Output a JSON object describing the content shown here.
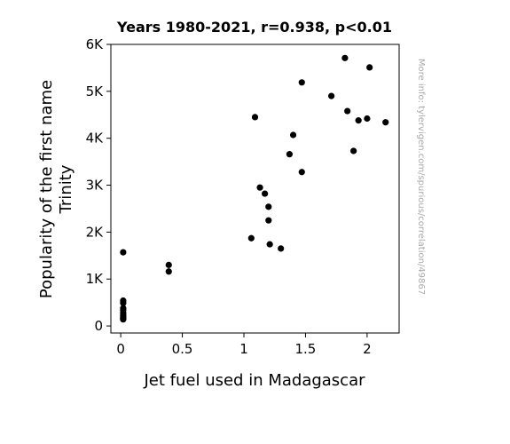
{
  "chart_data": {
    "type": "scatter",
    "title": "Years 1980-2021, r=0.938, p<0.01",
    "xlabel": "Jet fuel used in Madagascar",
    "ylabel_lines": [
      "Popularity of the first name",
      "Trinity"
    ],
    "xlim": [
      -0.08,
      2.26
    ],
    "ylim": [
      -150,
      6000
    ],
    "xticks": [
      {
        "value": 0,
        "label": "0"
      },
      {
        "value": 0.5,
        "label": "0.5"
      },
      {
        "value": 1,
        "label": "1"
      },
      {
        "value": 1.5,
        "label": "1.5"
      },
      {
        "value": 2,
        "label": "2"
      }
    ],
    "yticks": [
      {
        "value": 0,
        "label": "0"
      },
      {
        "value": 1000,
        "label": "1K"
      },
      {
        "value": 2000,
        "label": "2K"
      },
      {
        "value": 3000,
        "label": "3K"
      },
      {
        "value": 4000,
        "label": "4K"
      },
      {
        "value": 5000,
        "label": "5K"
      },
      {
        "value": 6000,
        "label": "6K"
      }
    ],
    "grid": false,
    "marker_color": "#000000",
    "points": [
      {
        "x": 0.02,
        "y": 1570
      },
      {
        "x": 0.02,
        "y": 540
      },
      {
        "x": 0.02,
        "y": 490
      },
      {
        "x": 0.02,
        "y": 380
      },
      {
        "x": 0.02,
        "y": 340
      },
      {
        "x": 0.02,
        "y": 280
      },
      {
        "x": 0.02,
        "y": 240
      },
      {
        "x": 0.02,
        "y": 210
      },
      {
        "x": 0.02,
        "y": 180
      },
      {
        "x": 0.02,
        "y": 160
      },
      {
        "x": 0.02,
        "y": 140
      },
      {
        "x": 0.39,
        "y": 1300
      },
      {
        "x": 0.39,
        "y": 1160
      },
      {
        "x": 1.06,
        "y": 1870
      },
      {
        "x": 1.09,
        "y": 4450
      },
      {
        "x": 1.13,
        "y": 2950
      },
      {
        "x": 1.17,
        "y": 2820
      },
      {
        "x": 1.2,
        "y": 2540
      },
      {
        "x": 1.2,
        "y": 2250
      },
      {
        "x": 1.21,
        "y": 1740
      },
      {
        "x": 1.3,
        "y": 1650
      },
      {
        "x": 1.37,
        "y": 3660
      },
      {
        "x": 1.4,
        "y": 4070
      },
      {
        "x": 1.47,
        "y": 5190
      },
      {
        "x": 1.47,
        "y": 3280
      },
      {
        "x": 1.71,
        "y": 4900
      },
      {
        "x": 1.82,
        "y": 5710
      },
      {
        "x": 1.84,
        "y": 4580
      },
      {
        "x": 1.89,
        "y": 3730
      },
      {
        "x": 1.93,
        "y": 4380
      },
      {
        "x": 2.0,
        "y": 4420
      },
      {
        "x": 2.02,
        "y": 5510
      },
      {
        "x": 2.15,
        "y": 4340
      }
    ]
  },
  "watermark": "More info: tylervigen.com/spurious/correlation/49867"
}
